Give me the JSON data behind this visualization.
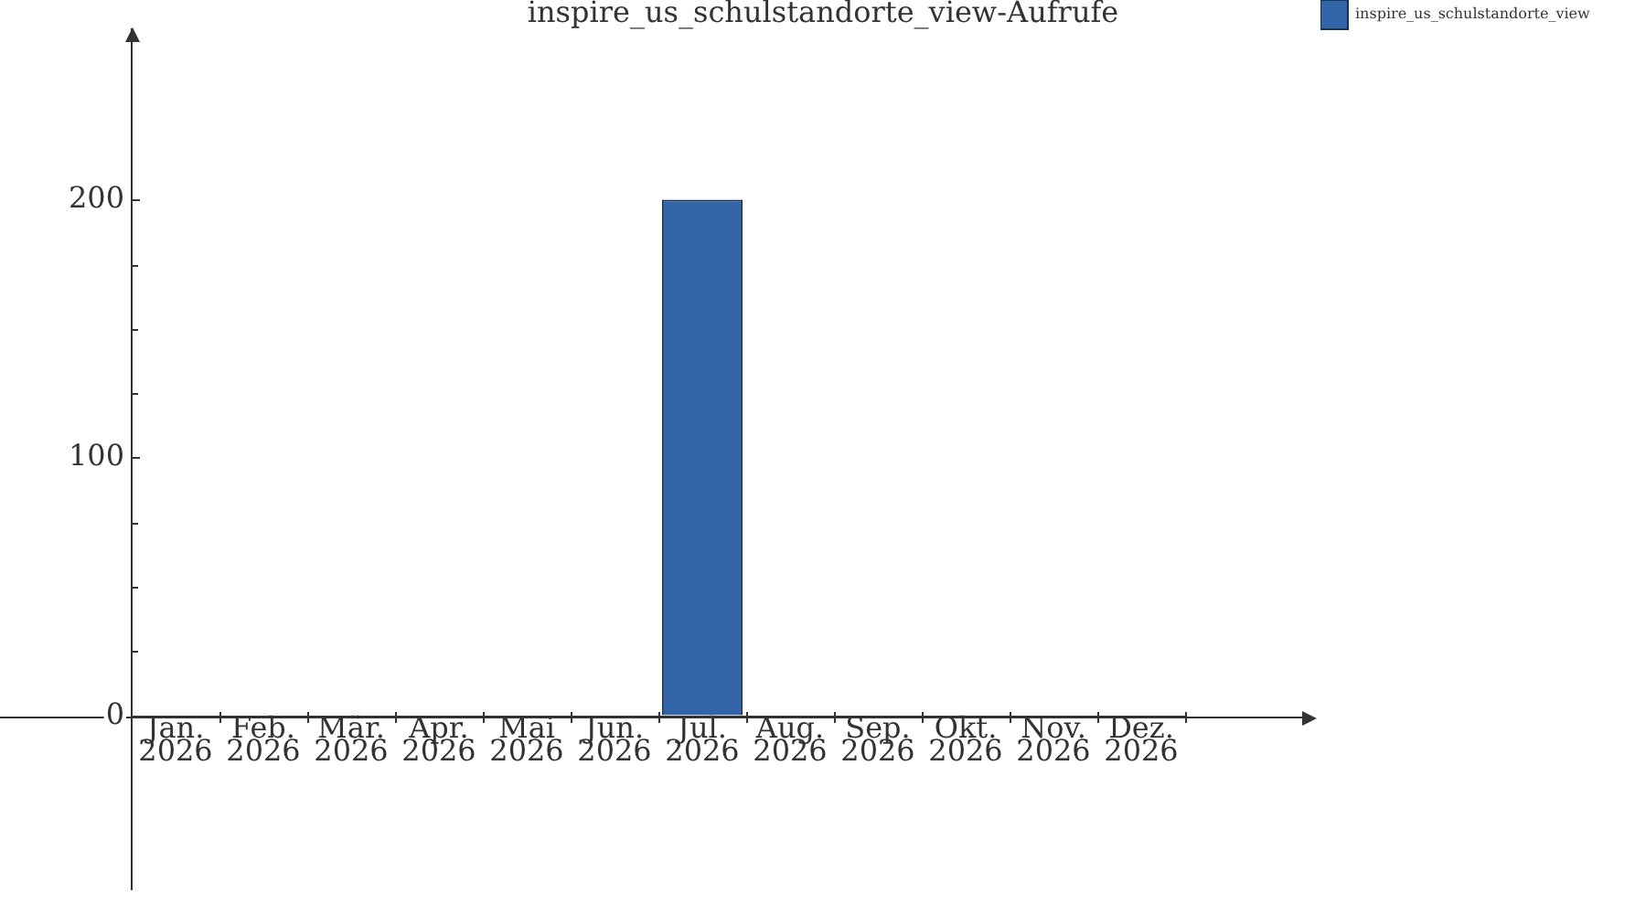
{
  "chart_data": {
    "type": "bar",
    "title": "inspire_us_schulstandorte_view-Aufrufe",
    "categories": [
      "Jan. 2026",
      "Feb. 2026",
      "Mär. 2026",
      "Apr. 2026",
      "Mai 2026",
      "Jun. 2026",
      "Jul. 2026",
      "Aug. 2026",
      "Sep. 2026",
      "Okt. 2026",
      "Nov. 2026",
      "Dez. 2026"
    ],
    "series": [
      {
        "name": "inspire_us_schulstandorte_view",
        "color": "#3264a8",
        "values": [
          0,
          0,
          0,
          0,
          0,
          0,
          200,
          0,
          0,
          0,
          0,
          0
        ]
      }
    ],
    "ylim": [
      -67,
      266
    ],
    "yticks": [
      0,
      {
        "value": 25,
        "label": null
      },
      {
        "value": 50,
        "label": null
      },
      {
        "value": 75,
        "label": null
      },
      100,
      {
        "value": 125,
        "label": null
      },
      {
        "value": 150,
        "label": null
      },
      {
        "value": 175,
        "label": null
      },
      200
    ],
    "legend": "top right"
  }
}
